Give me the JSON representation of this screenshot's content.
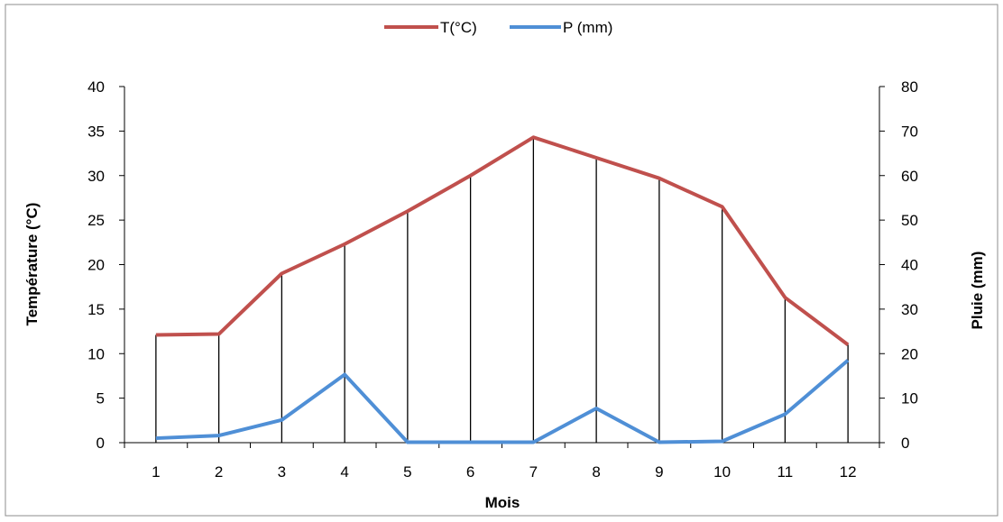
{
  "chart_data": {
    "type": "line",
    "title": "",
    "xlabel": "Mois",
    "ylabel": "Température (°C)",
    "y2label": "Pluie (mm)",
    "categories": [
      "1",
      "2",
      "3",
      "4",
      "5",
      "6",
      "7",
      "8",
      "9",
      "10",
      "11",
      "12"
    ],
    "series": [
      {
        "name": "T(°C)",
        "axis": "left",
        "color": "#c0504d",
        "values": [
          12.1,
          12.2,
          19.0,
          22.3,
          26.0,
          30.0,
          34.3,
          32.0,
          29.7,
          26.5,
          16.3,
          11.0
        ]
      },
      {
        "name": "P (mm)",
        "axis": "right",
        "color": "#4f8fd6",
        "values": [
          1.0,
          1.6,
          5.1,
          15.3,
          0.1,
          0.1,
          0.1,
          7.7,
          0.1,
          0.3,
          6.4,
          18.5
        ]
      }
    ],
    "ylim": [
      0,
      40
    ],
    "y2lim": [
      0,
      80
    ],
    "yticks": [
      "0",
      "5",
      "10",
      "15",
      "20",
      "25",
      "30",
      "35",
      "40"
    ],
    "y2ticks": [
      "0",
      "10",
      "20",
      "30",
      "40",
      "50",
      "60",
      "70",
      "80"
    ],
    "vertical_drop_lines": true,
    "grid": false,
    "legend_position": "top"
  }
}
